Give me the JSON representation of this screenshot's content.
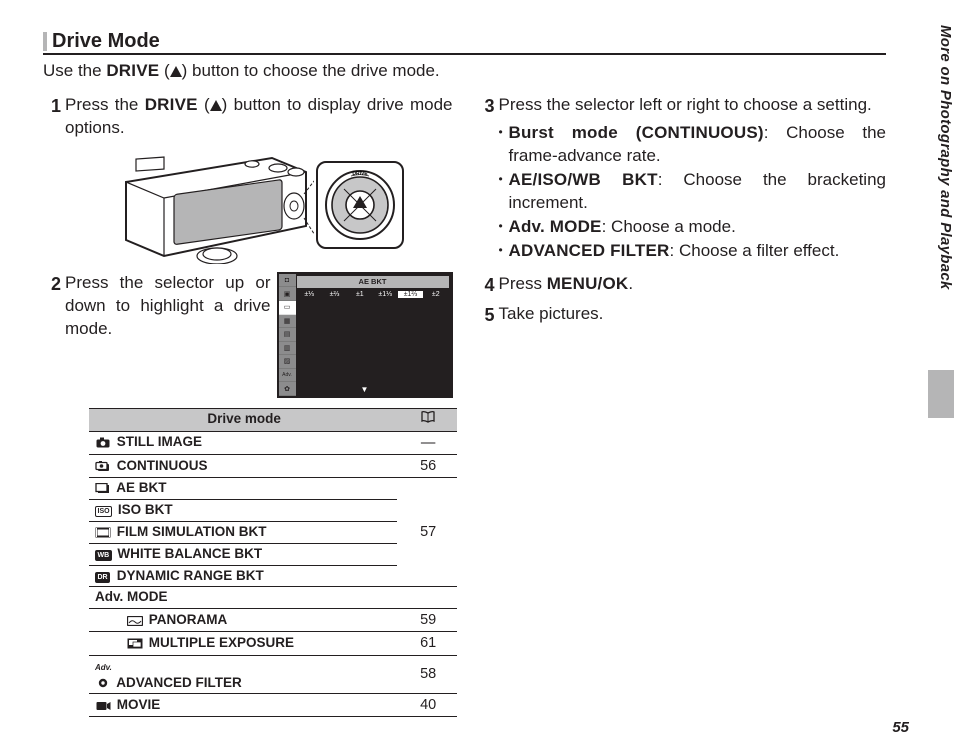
{
  "side_title": "More on Photography and Playback",
  "page_number": "55",
  "section_title": "Drive Mode",
  "intro_pre": "Use the ",
  "intro_btn": "DRIVE",
  "intro_post": ") button to choose the drive mode.",
  "step1": {
    "num": "1",
    "pre": "Press the ",
    "btn": "DRIVE",
    "post": ") button to display drive mode options."
  },
  "step2": {
    "num": "2",
    "text": "Press the selector up or down to highlight a drive mode."
  },
  "step3": {
    "num": "3",
    "text": "Press the selector left or right to choose a setting.",
    "subs": [
      {
        "label": "Burst mode (CONTINUOUS)",
        "rest": ": Choose the frame-advance rate."
      },
      {
        "label": "AE/ISO/WB BKT",
        "rest": ": Choose the bracketing increment."
      },
      {
        "label": "Adv. MODE",
        "rest": ": Choose a mode."
      },
      {
        "label": "ADVANCED FILTER",
        "rest": ": Choose a filter effect."
      }
    ]
  },
  "step4": {
    "num": "4",
    "pre": "Press ",
    "btn": "MENU/OK",
    "post": "."
  },
  "step5": {
    "num": "5",
    "text": "Take pictures."
  },
  "lcd": {
    "band": "AE BKT",
    "vals": [
      "±⅓",
      "±⅔",
      "±1",
      "±1⅓",
      "±1⅔",
      "±2"
    ],
    "sel_index": 4
  },
  "table": {
    "head_mode": "Drive mode",
    "rows": [
      {
        "label": "STILL IMAGE",
        "page": "—",
        "icon": "camera"
      },
      {
        "label": "CONTINUOUS",
        "page": "56",
        "icon": "burst"
      },
      {
        "label": "AE BKT",
        "page": null,
        "icon": "ae",
        "group": "57"
      },
      {
        "label": "ISO BKT",
        "page": null,
        "icon": "iso",
        "group": "57"
      },
      {
        "label": "FILM SIMULATION BKT",
        "page": null,
        "icon": "film",
        "group": "57"
      },
      {
        "label": "WHITE BALANCE BKT",
        "page": null,
        "icon": "wb",
        "group": "57"
      },
      {
        "label": "DYNAMIC RANGE BKT",
        "page": "57",
        "icon": "dr",
        "group_end": true
      },
      {
        "label": "Adv. MODE",
        "page": null,
        "no_icon": true
      },
      {
        "label": "PANORAMA",
        "page": "59",
        "icon": "pano",
        "indent": true
      },
      {
        "label": "MULTIPLE EXPOSURE",
        "page": "61",
        "icon": "multi",
        "indent": true
      },
      {
        "label": "ADVANCED FILTER",
        "page": "58",
        "icon": "adv"
      },
      {
        "label": "MOVIE",
        "page": "40",
        "icon": "movie"
      }
    ]
  }
}
